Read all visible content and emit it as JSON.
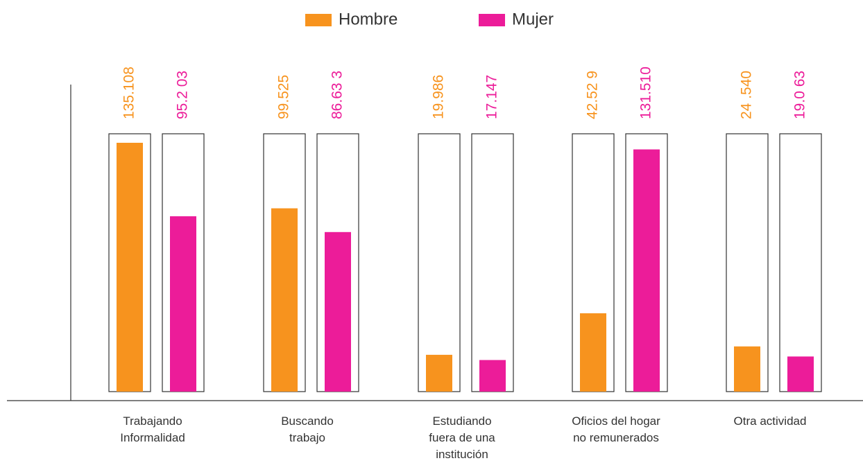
{
  "chart_data": {
    "type": "bar",
    "categories": [
      "Trabajando Informalidad",
      "Buscando trabajo",
      "Estudiando fuera de una institución",
      "Oficios del hogar no remunerados",
      "Otra actividad"
    ],
    "series": [
      {
        "name": "Hombre",
        "color": "#f7931e",
        "values": [
          135108,
          99525,
          19986,
          42529,
          24540
        ],
        "value_labels": [
          "135.108",
          "99.525",
          "19.986",
          "42.52 9",
          "24 .540"
        ]
      },
      {
        "name": "Mujer",
        "color": "#ec1c99",
        "values": [
          95203,
          86633,
          17147,
          131510,
          19063
        ],
        "value_labels": [
          "95.2 03",
          "86.63 3",
          "17.147",
          "131.510",
          "19.0 63"
        ]
      }
    ],
    "ylim": [
      0,
      140000
    ]
  }
}
